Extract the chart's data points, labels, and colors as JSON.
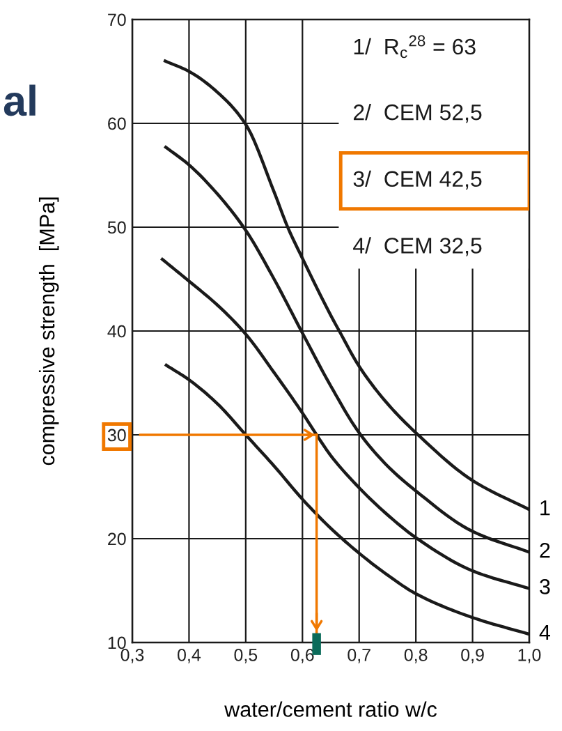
{
  "chart_data": {
    "type": "line",
    "title": "al",
    "xlabel": "water/cement ratio w/c",
    "ylabel": "compressive strength  [MPa]",
    "xlim": [
      0.3,
      1.0
    ],
    "ylim": [
      10,
      70
    ],
    "xticks": [
      {
        "value": 0.3,
        "label": "0,3"
      },
      {
        "value": 0.4,
        "label": "0,4"
      },
      {
        "value": 0.5,
        "label": "0,5"
      },
      {
        "value": 0.6,
        "label": "0,6"
      },
      {
        "value": 0.7,
        "label": "0,7"
      },
      {
        "value": 0.8,
        "label": "0,8"
      },
      {
        "value": 0.9,
        "label": "0,9"
      },
      {
        "value": 1.0,
        "label": "1,0"
      }
    ],
    "yticks": [
      10,
      20,
      30,
      40,
      50,
      60,
      70
    ],
    "grid": true,
    "marker": "none",
    "line_style": "solid",
    "series": [
      {
        "name": "1",
        "color": "#1a1a1a",
        "x": [
          0.358,
          0.4,
          0.45,
          0.5,
          0.55,
          0.574,
          0.6,
          0.65,
          0.665,
          0.7,
          0.75,
          0.8,
          0.9,
          1.0
        ],
        "values": [
          66.0,
          65.0,
          63.0,
          59.9,
          53.4,
          50.0,
          47.0,
          41.5,
          40.0,
          36.6,
          33.0,
          30.2,
          25.6,
          22.8
        ]
      },
      {
        "name": "2",
        "color": "#1a1a1a",
        "x": [
          0.359,
          0.4,
          0.45,
          0.5,
          0.55,
          0.6,
          0.65,
          0.7,
          0.75,
          0.8,
          0.9,
          1.0
        ],
        "values": [
          57.7,
          56.0,
          53.2,
          49.7,
          45.0,
          39.8,
          34.7,
          30.2,
          27.0,
          24.6,
          20.7,
          18.7
        ]
      },
      {
        "name": "3",
        "color": "#1a1a1a",
        "x": [
          0.353,
          0.4,
          0.45,
          0.5,
          0.55,
          0.6,
          0.625,
          0.65,
          0.7,
          0.75,
          0.8,
          0.9,
          1.0
        ],
        "values": [
          46.9,
          44.8,
          42.5,
          39.7,
          36.0,
          32.1,
          30.0,
          28.0,
          24.9,
          22.3,
          20.1,
          16.9,
          15.2
        ]
      },
      {
        "name": "4",
        "color": "#1a1a1a",
        "x": [
          0.36,
          0.4,
          0.45,
          0.5,
          0.55,
          0.6,
          0.65,
          0.7,
          0.75,
          0.8,
          0.9,
          1.0
        ],
        "values": [
          36.7,
          35.3,
          33.0,
          30.0,
          27.0,
          23.8,
          21.0,
          18.6,
          16.5,
          14.7,
          12.4,
          10.8
        ]
      }
    ],
    "ref_lines": [
      {
        "axis": "y",
        "value": 30,
        "color": "#f07800"
      },
      {
        "axis": "x",
        "value": 0.625,
        "color": "#f07800"
      }
    ],
    "annotations": [
      "1/  R$_{c}$$^{28}$ = 63",
      "2/  CEM 52,5",
      "3/  CEM 42,5",
      "4/  CEM 32,5"
    ]
  }
}
